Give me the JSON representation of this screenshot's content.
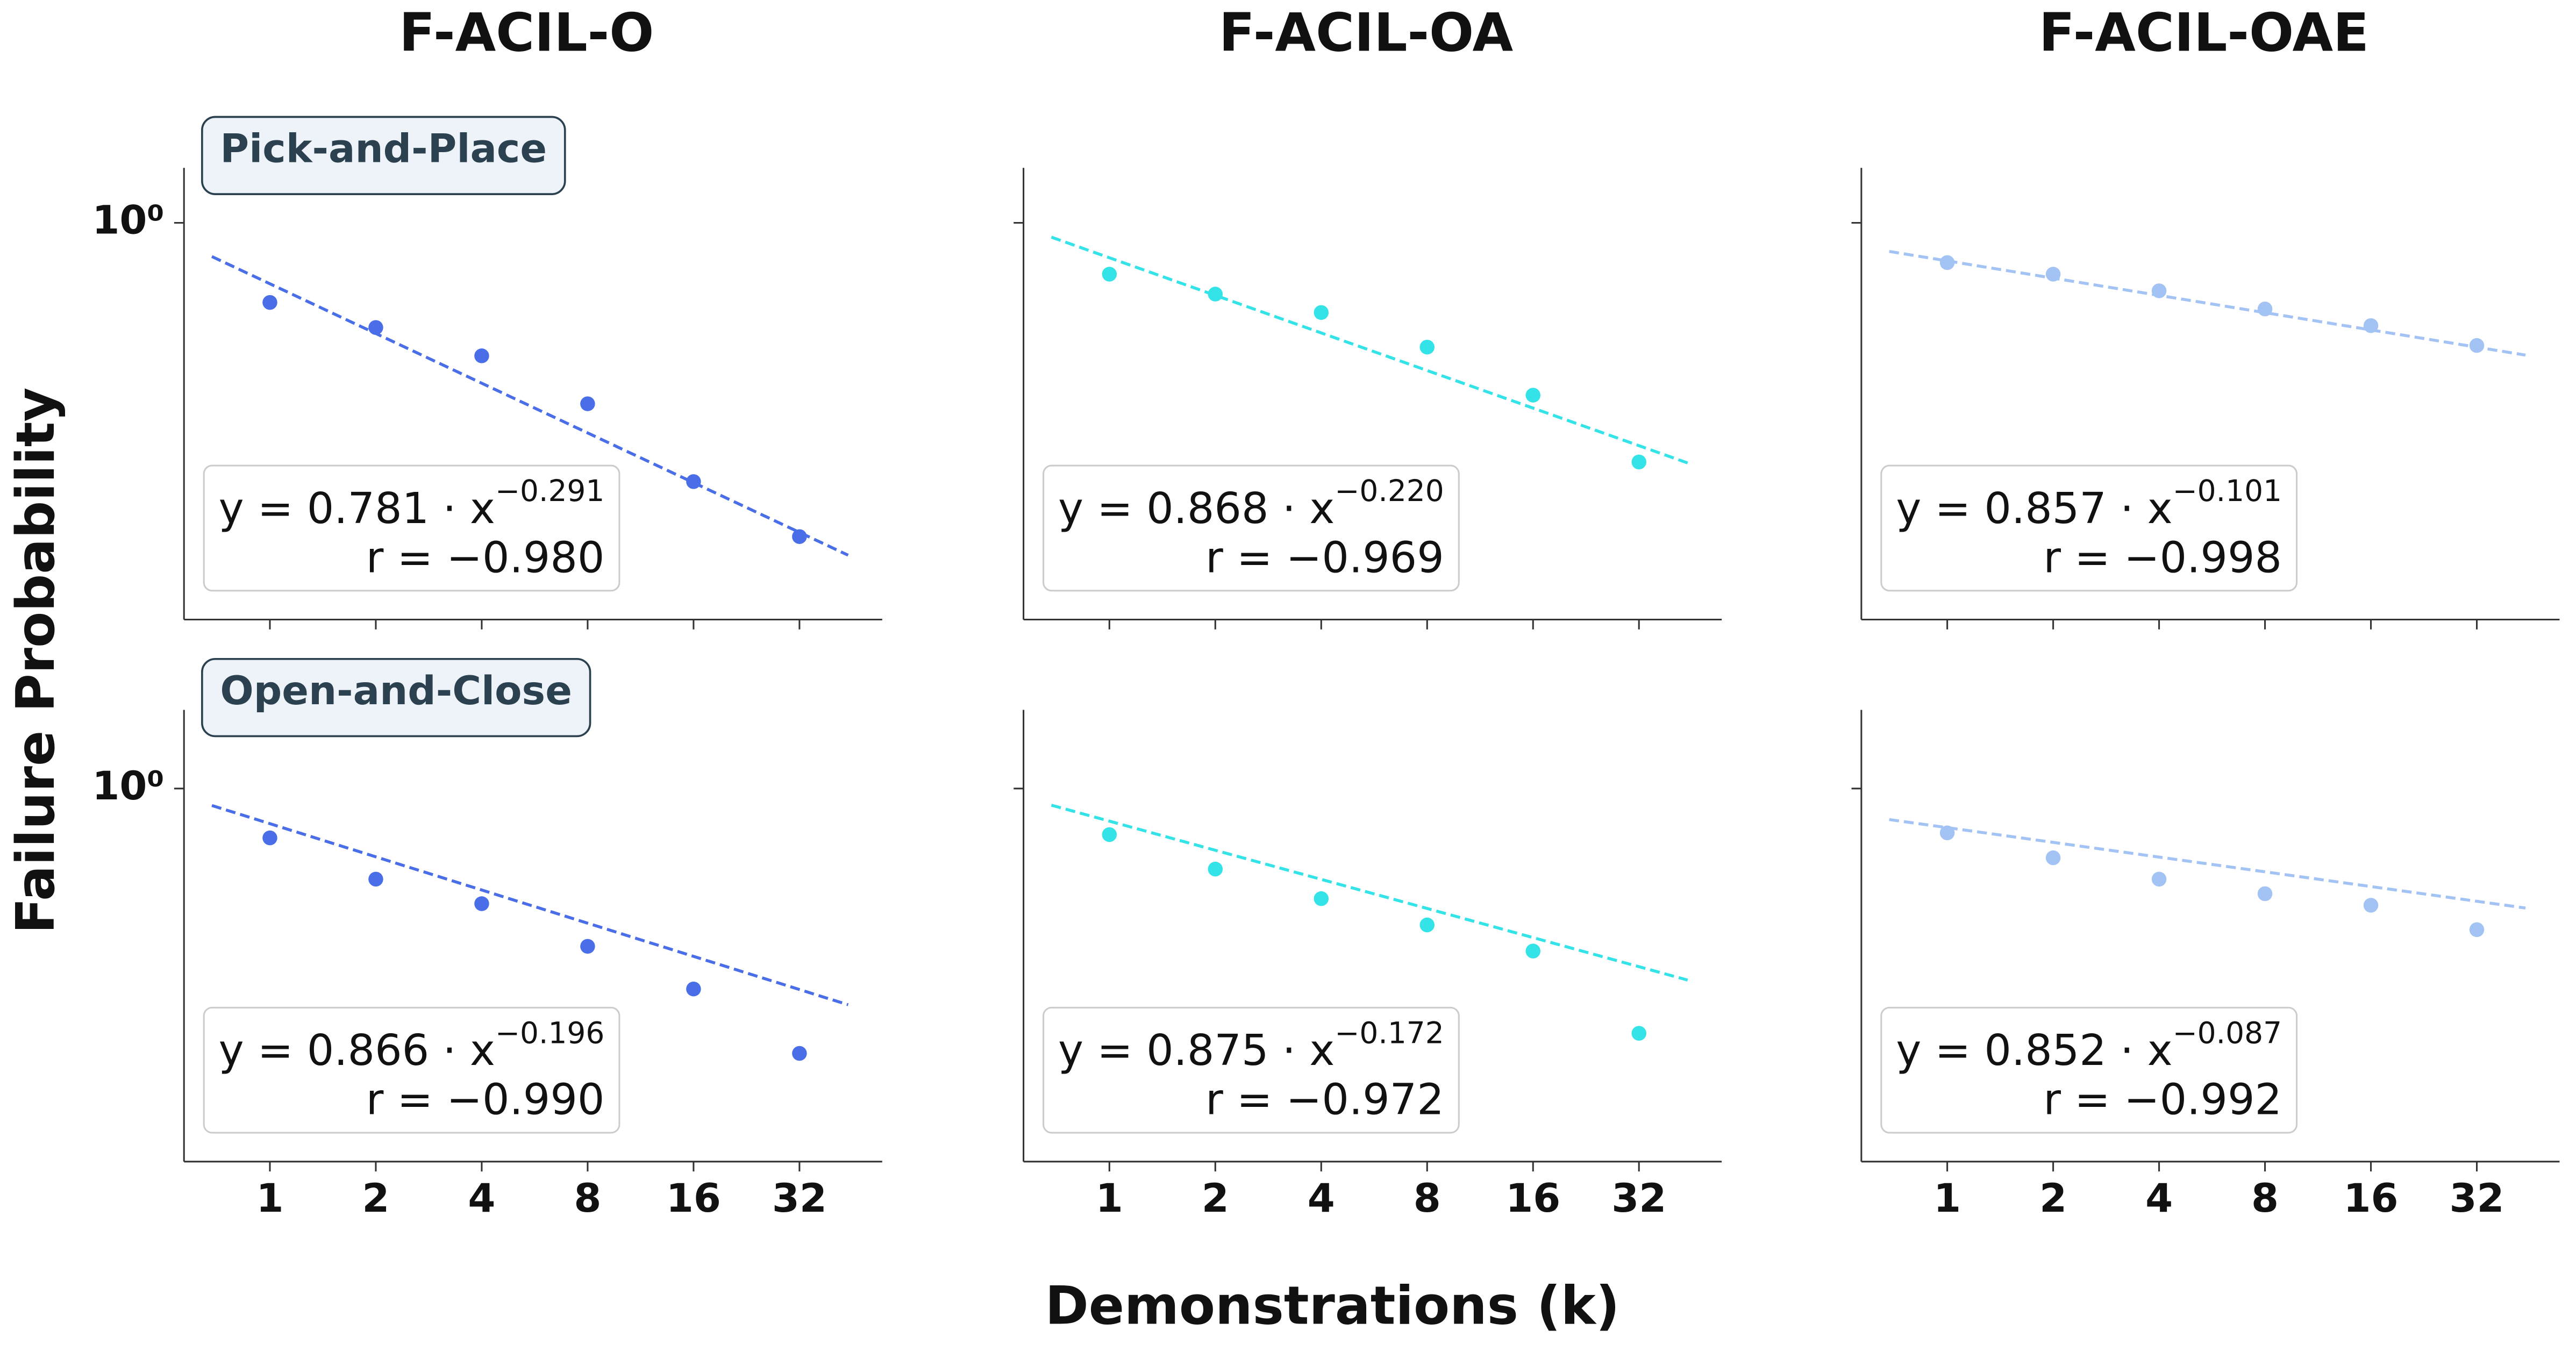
{
  "figure": {
    "xlabel": "Demonstrations (k)",
    "ylabel": "Failure Probability"
  },
  "chart_data": [
    {
      "type": "scatter",
      "title": "F-ACIL-O",
      "row_label": "Pick-and-Place",
      "x": [
        1,
        2,
        4,
        8,
        16,
        32
      ],
      "values": [
        0.724,
        0.654,
        0.583,
        0.48,
        0.35,
        0.28
      ],
      "color": "#4a6ee8",
      "xscale": "log",
      "yscale": "log",
      "xlim": [
        0.57,
        55
      ],
      "ylim": [
        0.2,
        1.25
      ],
      "xticks": [
        1,
        2,
        4,
        8,
        16,
        32
      ],
      "yticks": [
        {
          "value": 1,
          "label": "10⁰"
        }
      ],
      "show_xticklabels": false,
      "show_yticklabels": true,
      "fit": {
        "a": 0.781,
        "b": -0.291
      },
      "annotation": {
        "equation": "y = 0.781 · x",
        "exponent": "−0.291",
        "r": "r = −0.980"
      }
    },
    {
      "type": "scatter",
      "title": "F-ACIL-OA",
      "x": [
        1,
        2,
        4,
        8,
        16,
        32
      ],
      "values": [
        0.812,
        0.749,
        0.695,
        0.604,
        0.497,
        0.379
      ],
      "color": "#33e3e8",
      "xscale": "log",
      "yscale": "log",
      "xlim": [
        0.57,
        55
      ],
      "ylim": [
        0.2,
        1.25
      ],
      "xticks": [
        1,
        2,
        4,
        8,
        16,
        32
      ],
      "yticks": [
        1
      ],
      "show_xticklabels": false,
      "show_yticklabels": false,
      "fit": {
        "a": 0.868,
        "b": -0.22
      },
      "annotation": {
        "equation": "y = 0.868 · x",
        "exponent": "−0.220",
        "r": "r = −0.969"
      }
    },
    {
      "type": "scatter",
      "title": "F-ACIL-OAE",
      "x": [
        1,
        2,
        4,
        8,
        16,
        32
      ],
      "values": [
        0.851,
        0.812,
        0.759,
        0.705,
        0.659,
        0.608
      ],
      "color": "#a3c3f5",
      "xscale": "log",
      "yscale": "log",
      "xlim": [
        0.57,
        55
      ],
      "ylim": [
        0.2,
        1.25
      ],
      "xticks": [
        1,
        2,
        4,
        8,
        16,
        32
      ],
      "yticks": [
        1
      ],
      "show_xticklabels": false,
      "show_yticklabels": false,
      "fit": {
        "a": 0.857,
        "b": -0.101
      },
      "annotation": {
        "equation": "y = 0.857 · x",
        "exponent": "−0.101",
        "r": "r = −0.998"
      }
    },
    {
      "type": "scatter",
      "row_label": "Open-and-Close",
      "x": [
        1,
        2,
        4,
        8,
        16,
        32
      ],
      "values": [
        0.817,
        0.69,
        0.624,
        0.524,
        0.44,
        0.338
      ],
      "color": "#4a6ee8",
      "xscale": "log",
      "yscale": "log",
      "xlim": [
        0.57,
        55
      ],
      "ylim": [
        0.217,
        1.38
      ],
      "xticks": [
        1,
        2,
        4,
        8,
        16,
        32
      ],
      "yticks": [
        {
          "value": 1,
          "label": "10⁰"
        }
      ],
      "show_xticklabels": true,
      "show_yticklabels": true,
      "fit": {
        "a": 0.866,
        "b": -0.196
      },
      "annotation": {
        "equation": "y = 0.866 · x",
        "exponent": "−0.196",
        "r": "r = −0.990"
      }
    },
    {
      "type": "scatter",
      "x": [
        1,
        2,
        4,
        8,
        16,
        32
      ],
      "values": [
        0.828,
        0.719,
        0.637,
        0.572,
        0.514,
        0.367
      ],
      "color": "#33e3e8",
      "xscale": "log",
      "yscale": "log",
      "xlim": [
        0.57,
        55
      ],
      "ylim": [
        0.217,
        1.38
      ],
      "xticks": [
        1,
        2,
        4,
        8,
        16,
        32
      ],
      "yticks": [
        1
      ],
      "show_xticklabels": true,
      "show_yticklabels": false,
      "fit": {
        "a": 0.875,
        "b": -0.172
      },
      "annotation": {
        "equation": "y = 0.875 · x",
        "exponent": "−0.172",
        "r": "r = −0.972"
      }
    },
    {
      "type": "scatter",
      "x": [
        1,
        2,
        4,
        8,
        16,
        32
      ],
      "values": [
        0.834,
        0.753,
        0.69,
        0.65,
        0.62,
        0.561
      ],
      "color": "#a3c3f5",
      "xscale": "log",
      "yscale": "log",
      "xlim": [
        0.57,
        55
      ],
      "ylim": [
        0.217,
        1.38
      ],
      "xticks": [
        1,
        2,
        4,
        8,
        16,
        32
      ],
      "yticks": [
        1
      ],
      "show_xticklabels": true,
      "show_yticklabels": false,
      "fit": {
        "a": 0.852,
        "b": -0.087
      },
      "annotation": {
        "equation": "y = 0.852 · x",
        "exponent": "−0.087",
        "r": "r = −0.992"
      }
    }
  ]
}
